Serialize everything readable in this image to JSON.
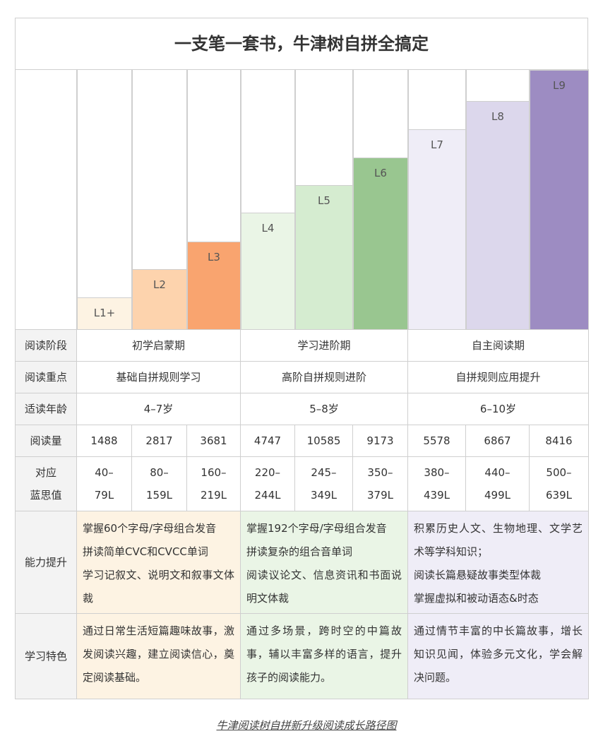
{
  "title": "一支笔一套书，牛津树自拼全搞定",
  "levels": [
    "L1+",
    "L2",
    "L3",
    "L4",
    "L5",
    "L6",
    "L7",
    "L8",
    "L9"
  ],
  "row_labels": {
    "stage": "阅读阶段",
    "focus": "阅读重点",
    "age": "适读年龄",
    "volume": "阅读量",
    "lexile": [
      "对应",
      "蓝思值"
    ],
    "ability": "能力提升",
    "feature": "学习特色"
  },
  "stages": [
    {
      "stage": "初学启蒙期",
      "focus": "基础自拼规则学习",
      "age": "4–7岁",
      "ability": [
        "掌握60个字母/字母组合发音",
        "拼读简单CVC和CVCC单词",
        "学习记叙文、说明文和叙事文体裁"
      ],
      "feature": "通过日常生活短篇趣味故事，激发阅读兴趣，建立阅读信心，奠定阅读基础。"
    },
    {
      "stage": "学习进阶期",
      "focus": "高阶自拼规则进阶",
      "age": "5–8岁",
      "ability": [
        "掌握192个字母/字母组合发音",
        "拼读复杂的组合音单词",
        "阅读议论文、信息资讯和书面说明文体裁"
      ],
      "feature": "通过多场景，跨时空的中篇故事，辅以丰富多样的语言，提升孩子的阅读能力。"
    },
    {
      "stage": "自主阅读期",
      "focus": "自拼规则应用提升",
      "age": "6–10岁",
      "ability": [
        "积累历史人文、生物地理、文学艺术等学科知识；",
        "阅读长篇悬疑故事类型体裁",
        "掌握虚拟和被动语态&时态"
      ],
      "feature": "通过情节丰富的中长篇故事，增长知识见闻，体验多元文化，学会解决问题。"
    }
  ],
  "volume": [
    "1488",
    "2817",
    "3681",
    "4747",
    "10585",
    "9173",
    "5578",
    "6867",
    "8416"
  ],
  "lexile": [
    [
      "40–",
      "79L"
    ],
    [
      "80–",
      "159L"
    ],
    [
      "160–",
      "219L"
    ],
    [
      "220–",
      "244L"
    ],
    [
      "245–",
      "349L"
    ],
    [
      "350–",
      "379L"
    ],
    [
      "380–",
      "439L"
    ],
    [
      "440–",
      "499L"
    ],
    [
      "500–",
      "639L"
    ]
  ],
  "caption": "牛津阅读树自拼新升级阅读成长路径图"
}
